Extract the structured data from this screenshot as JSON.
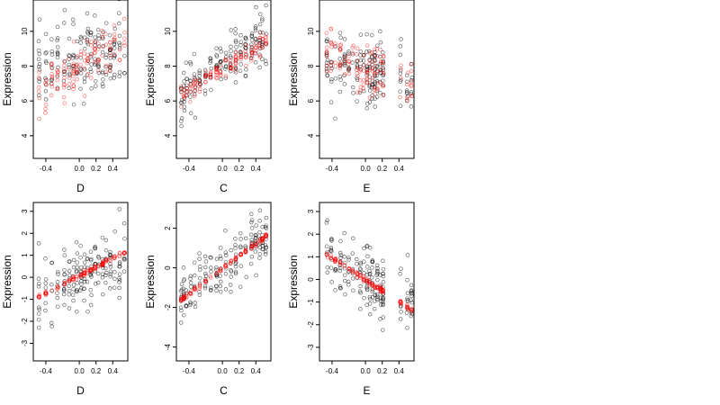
{
  "colors": {
    "background": "#ffffff",
    "frame": "#000000",
    "points_black": "#000000",
    "points_red": "#ff0000"
  },
  "chart_data": [
    {
      "type": "scatter",
      "xlabel": "D",
      "ylabel": "Expression",
      "xlim": [
        -0.55,
        0.58
      ],
      "ylim": [
        2.7,
        11.8
      ],
      "xticks": [
        "-0.4",
        "0.0",
        "0.2",
        "0.4"
      ],
      "xtick_values": [
        -0.4,
        0.0,
        0.2,
        0.4
      ],
      "yticks": [
        "4",
        "6",
        "8",
        "10"
      ],
      "yticks_values": [
        4,
        6,
        8,
        10
      ],
      "xcols": [
        -0.48,
        -0.4,
        -0.33,
        -0.26,
        -0.18,
        -0.12,
        -0.07,
        -0.03,
        0.02,
        0.06,
        0.1,
        0.14,
        0.19,
        0.23,
        0.28,
        0.32,
        0.37,
        0.42,
        0.48,
        0.54
      ],
      "series": [
        {
          "color": "black",
          "ycenter_start": 8.0,
          "ycenter_end": 9.0,
          "spread": 2.4,
          "count": 170
        },
        {
          "color": "red",
          "ycenter_start": 6.5,
          "ycenter_end": 9.5,
          "spread": 1.7,
          "count": 120
        }
      ]
    },
    {
      "type": "scatter",
      "xlabel": "C",
      "ylabel": "Expression",
      "xlim": [
        -0.55,
        0.58
      ],
      "ylim": [
        2.7,
        11.8
      ],
      "xticks": [
        "-0.4",
        "0.0",
        "0.2",
        "0.4"
      ],
      "xtick_values": [
        -0.4,
        0.0,
        0.2,
        0.4
      ],
      "yticks": [
        "4",
        "6",
        "8",
        "10"
      ],
      "yticks_values": [
        4,
        6,
        8,
        10
      ],
      "xcols": [
        -0.49,
        -0.46,
        -0.43,
        -0.38,
        -0.33,
        -0.27,
        -0.2,
        -0.14,
        -0.07,
        -0.02,
        0.04,
        0.1,
        0.16,
        0.22,
        0.28,
        0.35,
        0.4,
        0.45,
        0.48,
        0.52
      ],
      "series": [
        {
          "color": "black",
          "ycenter_start": 6.3,
          "ycenter_end": 9.8,
          "spread": 1.6,
          "count": 170
        },
        {
          "color": "red",
          "ycenter_start": 6.2,
          "ycenter_end": 9.6,
          "spread": 0.6,
          "count": 120
        }
      ]
    },
    {
      "type": "scatter",
      "xlabel": "E",
      "ylabel": "Expression",
      "xlim": [
        -0.55,
        0.58
      ],
      "ylim": [
        2.7,
        11.8
      ],
      "xticks": [
        "-0.4",
        "0.0",
        "0.2",
        "0.4"
      ],
      "xtick_values": [
        -0.4,
        0.0,
        0.2,
        0.4
      ],
      "yticks": [
        "4",
        "6",
        "8",
        "10"
      ],
      "yticks_values": [
        4,
        6,
        8,
        10
      ],
      "xcols": [
        -0.46,
        -0.41,
        -0.36,
        -0.3,
        -0.25,
        -0.2,
        -0.15,
        -0.1,
        -0.06,
        -0.02,
        0.02,
        0.05,
        0.08,
        0.11,
        0.14,
        0.18,
        0.21,
        0.42,
        0.5,
        0.55
      ],
      "series": [
        {
          "color": "black",
          "ycenter_start": 8.5,
          "ycenter_end": 7.2,
          "spread": 2.1,
          "count": 170
        },
        {
          "color": "red",
          "ycenter_start": 9.0,
          "ycenter_end": 6.8,
          "spread": 1.5,
          "count": 120
        }
      ]
    },
    {
      "type": "scatter",
      "xlabel": "D",
      "ylabel": "Expression",
      "xlim": [
        -0.55,
        0.58
      ],
      "ylim": [
        -3.8,
        3.4
      ],
      "xticks": [
        "-0.4",
        "0.0",
        "0.2",
        "0.4"
      ],
      "xtick_values": [
        -0.4,
        0.0,
        0.2,
        0.4
      ],
      "yticks": [
        "-3",
        "-2",
        "-1",
        "0",
        "1",
        "2",
        "3"
      ],
      "yticks_values": [
        -3,
        -2,
        -1,
        0,
        1,
        2,
        3
      ],
      "xcols": [
        -0.48,
        -0.4,
        -0.33,
        -0.26,
        -0.18,
        -0.12,
        -0.07,
        -0.03,
        0.02,
        0.06,
        0.1,
        0.14,
        0.19,
        0.23,
        0.28,
        0.32,
        0.37,
        0.42,
        0.48,
        0.54
      ],
      "series": [
        {
          "color": "black",
          "ycenter_start": -0.8,
          "ycenter_end": 1.0,
          "spread": 1.7,
          "count": 170
        },
        {
          "color": "red",
          "ycenter_start": -1.0,
          "ycenter_end": 1.2,
          "spread": 0.12,
          "count": 120
        }
      ]
    },
    {
      "type": "scatter",
      "xlabel": "C",
      "ylabel": "Expression",
      "xlim": [
        -0.55,
        0.58
      ],
      "ylim": [
        -4.7,
        3.3
      ],
      "xticks": [
        "-0.4",
        "0.0",
        "0.2",
        "0.4"
      ],
      "xtick_values": [
        -0.4,
        0.0,
        0.2,
        0.4
      ],
      "yticks": [
        "-4",
        "-2",
        "0",
        "2"
      ],
      "yticks_values": [
        -4,
        -2,
        0,
        2
      ],
      "xcols": [
        -0.49,
        -0.46,
        -0.43,
        -0.38,
        -0.33,
        -0.27,
        -0.2,
        -0.14,
        -0.07,
        -0.02,
        0.04,
        0.1,
        0.16,
        0.22,
        0.28,
        0.35,
        0.4,
        0.45,
        0.48,
        0.52
      ],
      "series": [
        {
          "color": "black",
          "ycenter_start": -1.8,
          "ycenter_end": 1.8,
          "spread": 1.6,
          "count": 170
        },
        {
          "color": "red",
          "ycenter_start": -1.8,
          "ycenter_end": 1.8,
          "spread": 0.12,
          "count": 120
        }
      ]
    },
    {
      "type": "scatter",
      "xlabel": "E",
      "ylabel": "Expression",
      "xlim": [
        -0.55,
        0.58
      ],
      "ylim": [
        -3.6,
        3.4
      ],
      "xticks": [
        "-0.4",
        "0.0",
        "0.2",
        "0.4"
      ],
      "xtick_values": [
        -0.4,
        0.0,
        0.2,
        0.4
      ],
      "yticks": [
        "-3",
        "-2",
        "-1",
        "0",
        "1",
        "2",
        "3"
      ],
      "yticks_values": [
        -3,
        -2,
        -1,
        0,
        1,
        2,
        3
      ],
      "xcols": [
        -0.46,
        -0.41,
        -0.36,
        -0.3,
        -0.25,
        -0.2,
        -0.15,
        -0.1,
        -0.06,
        -0.02,
        0.02,
        0.05,
        0.08,
        0.11,
        0.14,
        0.18,
        0.21,
        0.42,
        0.5,
        0.55
      ],
      "series": [
        {
          "color": "black",
          "ycenter_start": 1.4,
          "ycenter_end": -1.2,
          "spread": 1.6,
          "count": 170
        },
        {
          "color": "red",
          "ycenter_start": 1.3,
          "ycenter_end": -1.4,
          "spread": 0.12,
          "count": 120
        }
      ]
    }
  ]
}
